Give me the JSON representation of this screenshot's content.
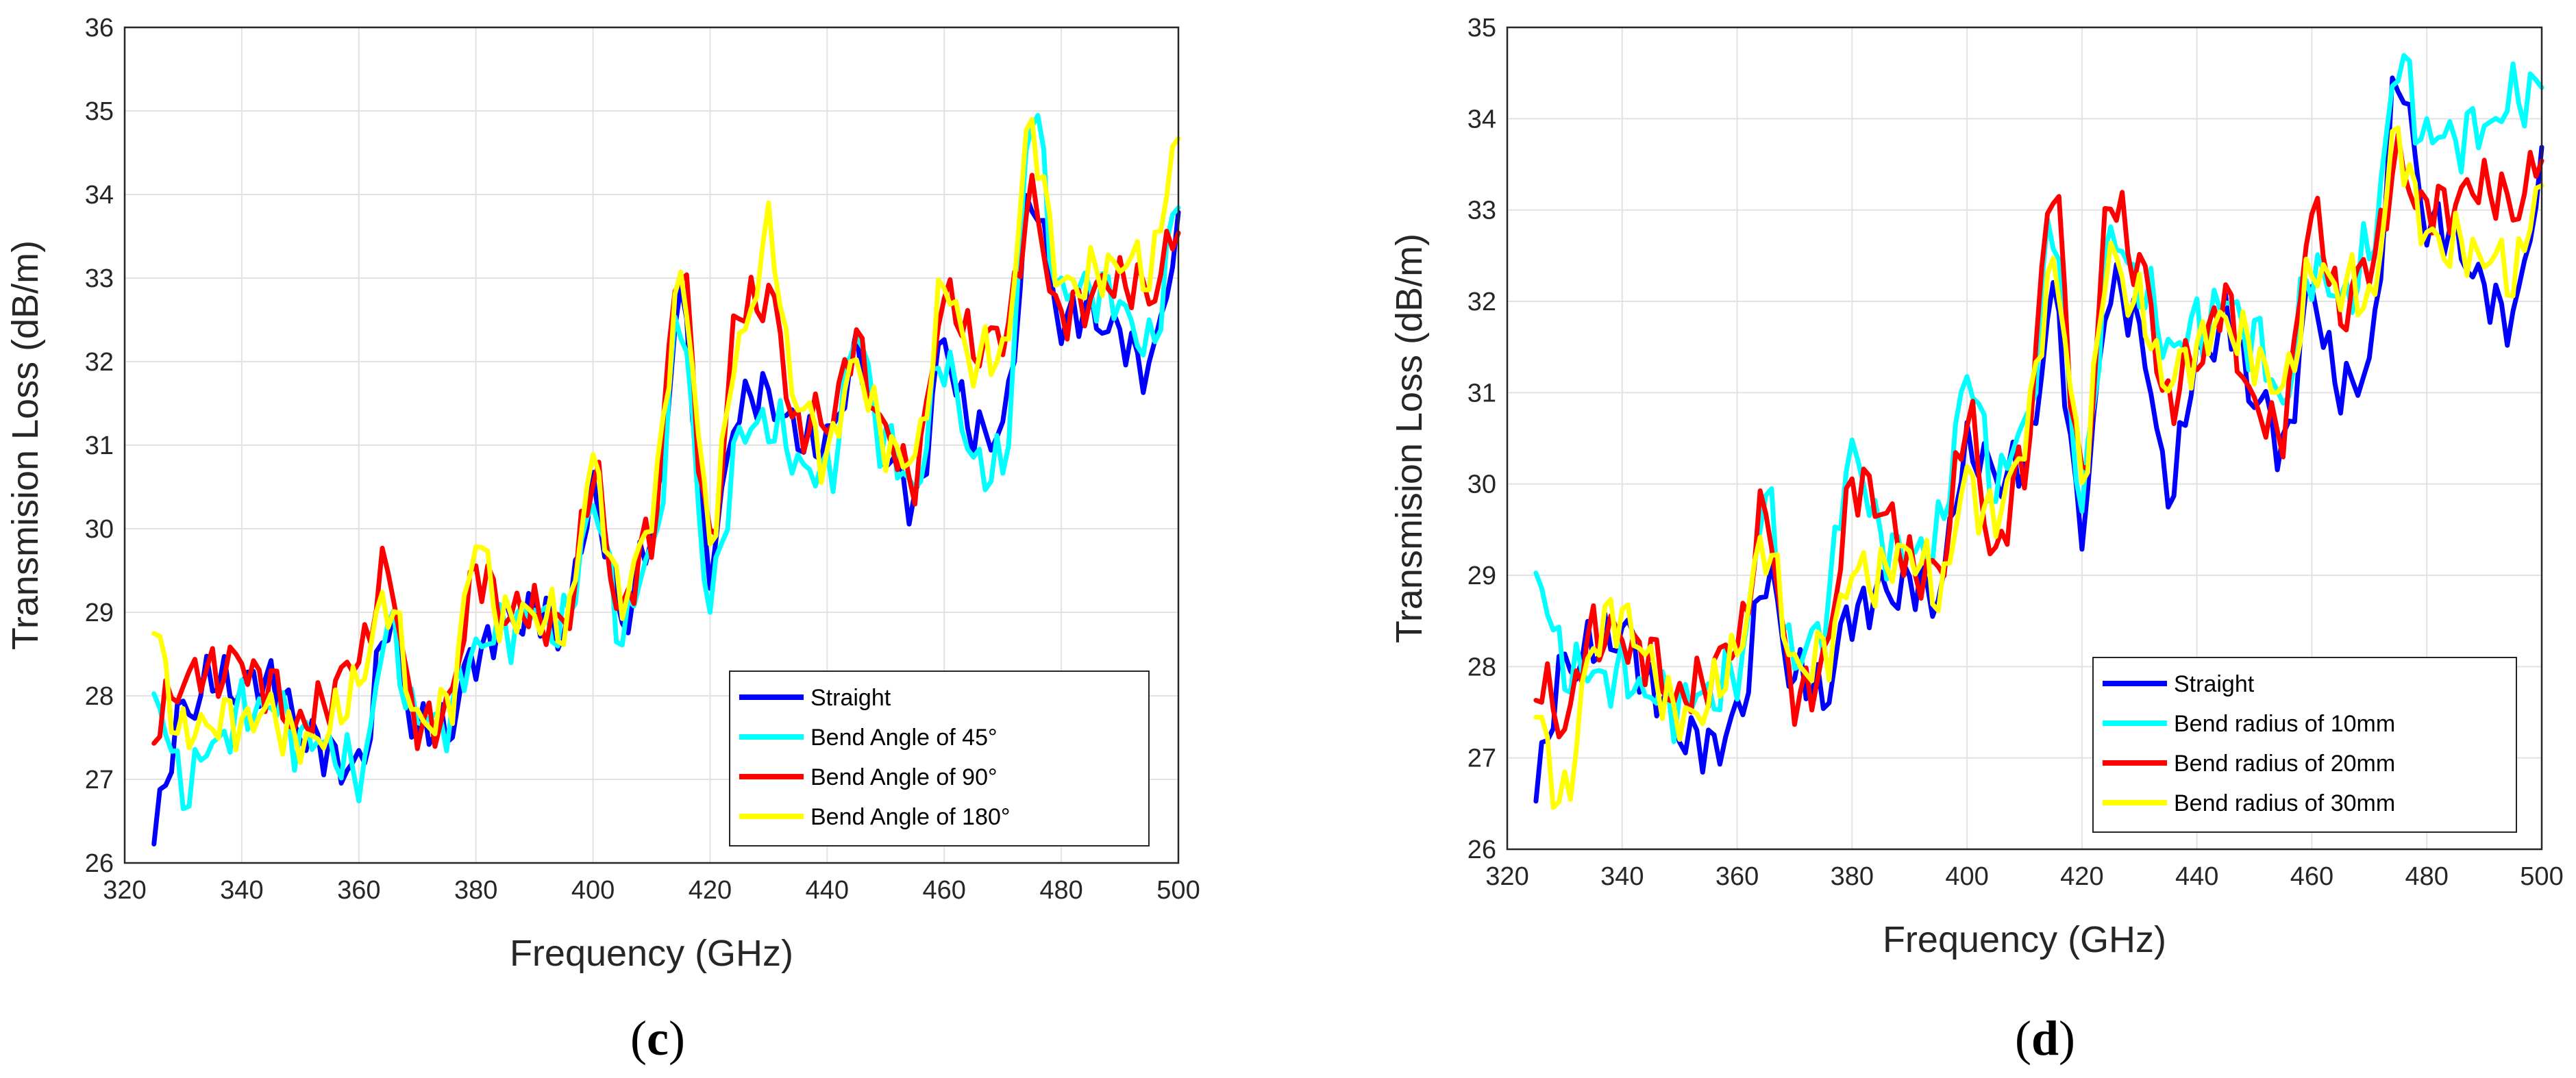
{
  "chart_data": [
    {
      "type": "line",
      "panel_label_prefix": "(",
      "panel_label_letter": "c",
      "panel_label_suffix": ")",
      "title": "",
      "xlabel": "Frequency (GHz)",
      "ylabel": "Transmision Loss (dB/m)",
      "xlim": [
        320,
        500
      ],
      "ylim": [
        26,
        36
      ],
      "xticks": [
        320,
        340,
        360,
        380,
        400,
        420,
        440,
        460,
        480,
        500
      ],
      "yticks": [
        26,
        27,
        28,
        29,
        30,
        31,
        32,
        33,
        34,
        35,
        36
      ],
      "grid": true,
      "legend_position": "bottom-right",
      "x": [
        325,
        330,
        335,
        340,
        345,
        350,
        355,
        360,
        365,
        370,
        375,
        380,
        385,
        390,
        395,
        400,
        405,
        410,
        415,
        420,
        425,
        430,
        435,
        440,
        445,
        450,
        455,
        460,
        465,
        470,
        475,
        480,
        485,
        490,
        495,
        500
      ],
      "series": [
        {
          "name": "Straight",
          "color": "#0000ff",
          "values": [
            26.5,
            27.8,
            28.2,
            28.1,
            28.2,
            27.6,
            27.3,
            27.1,
            28.9,
            27.6,
            27.6,
            28.5,
            28.9,
            29.0,
            28.8,
            30.4,
            28.9,
            29.9,
            32.7,
            29.6,
            31.5,
            31.6,
            31.1,
            31.0,
            32.1,
            30.9,
            30.3,
            32.2,
            31.1,
            31.2,
            34.0,
            32.5,
            32.6,
            32.3,
            31.9,
            33.5
          ]
        },
        {
          "name": "Bend Angle of 45°",
          "color": "#00ffff",
          "values": [
            28.0,
            26.9,
            27.4,
            27.8,
            27.9,
            27.5,
            27.4,
            27.0,
            28.8,
            27.7,
            27.7,
            28.6,
            28.8,
            29.0,
            28.8,
            30.3,
            28.8,
            29.7,
            32.5,
            29.1,
            31.1,
            31.3,
            30.8,
            30.6,
            32.3,
            31.0,
            30.5,
            32.1,
            30.8,
            30.7,
            35.0,
            32.8,
            32.9,
            32.7,
            32.1,
            33.9
          ]
        },
        {
          "name": "Bend Angle of 90°",
          "color": "#ff0000",
          "values": [
            27.6,
            28.2,
            28.3,
            28.4,
            28.1,
            27.6,
            28.0,
            28.5,
            29.5,
            27.6,
            27.8,
            29.5,
            29.0,
            29.0,
            28.8,
            30.6,
            29.0,
            30.0,
            33.2,
            29.8,
            32.6,
            32.8,
            31.2,
            31.3,
            32.2,
            31.1,
            30.6,
            32.8,
            32.2,
            32.3,
            33.9,
            32.5,
            32.8,
            33.0,
            32.8,
            33.6
          ]
        },
        {
          "name": "Bend Angle of 180°",
          "color": "#ffff00",
          "values": [
            28.7,
            27.5,
            27.7,
            27.7,
            27.8,
            27.4,
            27.6,
            28.2,
            29.2,
            27.7,
            27.8,
            29.8,
            28.9,
            29.0,
            28.8,
            30.7,
            29.1,
            30.2,
            33.0,
            30.0,
            32.2,
            33.5,
            31.5,
            30.9,
            32.0,
            31.0,
            30.8,
            32.9,
            32.0,
            32.1,
            34.8,
            32.9,
            33.0,
            33.2,
            33.1,
            34.6
          ]
        }
      ]
    },
    {
      "type": "line",
      "panel_label_prefix": "(",
      "panel_label_letter": "d",
      "panel_label_suffix": ")",
      "title": "",
      "xlabel": "Frequency (GHz)",
      "ylabel": "Transmision Loss (dB/m)",
      "xlim": [
        320,
        500
      ],
      "ylim": [
        26,
        35
      ],
      "xticks": [
        320,
        340,
        360,
        380,
        400,
        420,
        440,
        460,
        480,
        500
      ],
      "yticks": [
        26,
        27,
        28,
        29,
        30,
        31,
        32,
        33,
        34,
        35
      ],
      "grid": true,
      "legend_position": "bottom-left",
      "x": [
        325,
        330,
        335,
        340,
        345,
        350,
        355,
        360,
        365,
        370,
        375,
        380,
        385,
        390,
        395,
        400,
        405,
        410,
        415,
        420,
        425,
        430,
        435,
        440,
        445,
        450,
        455,
        460,
        465,
        470,
        475,
        480,
        485,
        490,
        495,
        500
      ],
      "series": [
        {
          "name": "Straight",
          "color": "#0000ff",
          "values": [
            26.8,
            28.0,
            28.2,
            28.4,
            27.8,
            27.3,
            27.1,
            27.4,
            29.0,
            27.9,
            27.7,
            28.6,
            28.8,
            28.9,
            28.8,
            30.4,
            30.1,
            30.2,
            32.0,
            29.6,
            32.2,
            31.7,
            29.9,
            31.3,
            31.8,
            31.0,
            30.4,
            32.1,
            31.0,
            31.3,
            34.5,
            32.9,
            32.7,
            32.1,
            31.8,
            33.4
          ]
        },
        {
          "name": "Bend radius of 10mm",
          "color": "#00ffff",
          "values": [
            29.0,
            28.0,
            27.9,
            27.9,
            27.7,
            27.6,
            27.7,
            27.9,
            29.8,
            28.0,
            28.5,
            30.4,
            29.4,
            29.2,
            29.4,
            31.2,
            30.0,
            30.6,
            32.8,
            29.8,
            32.7,
            32.2,
            31.5,
            31.7,
            32.0,
            31.6,
            30.9,
            32.4,
            32.0,
            32.5,
            34.6,
            33.8,
            33.8,
            33.9,
            34.2,
            34.4
          ]
        },
        {
          "name": "Bend radius of 20mm",
          "color": "#ff0000",
          "values": [
            27.8,
            27.4,
            28.4,
            28.3,
            28.1,
            27.6,
            27.9,
            28.3,
            29.7,
            27.6,
            28.0,
            30.0,
            29.8,
            29.1,
            29.0,
            30.7,
            29.2,
            30.3,
            33.3,
            30.0,
            33.1,
            32.4,
            30.9,
            31.4,
            32.0,
            30.8,
            30.6,
            33.0,
            31.9,
            32.4,
            33.5,
            33.0,
            33.1,
            33.3,
            33.0,
            33.6
          ]
        },
        {
          "name": "Bend radius of 30mm",
          "color": "#ffff00",
          "values": [
            27.4,
            26.5,
            28.3,
            28.6,
            28.0,
            27.4,
            27.6,
            28.2,
            29.4,
            28.0,
            28.1,
            29.0,
            29.0,
            29.3,
            28.8,
            30.0,
            29.6,
            30.5,
            32.4,
            30.2,
            32.5,
            31.9,
            31.1,
            31.5,
            31.8,
            31.4,
            31.0,
            32.3,
            32.2,
            32.0,
            33.8,
            32.7,
            32.6,
            32.5,
            32.3,
            33.2
          ]
        }
      ]
    }
  ]
}
